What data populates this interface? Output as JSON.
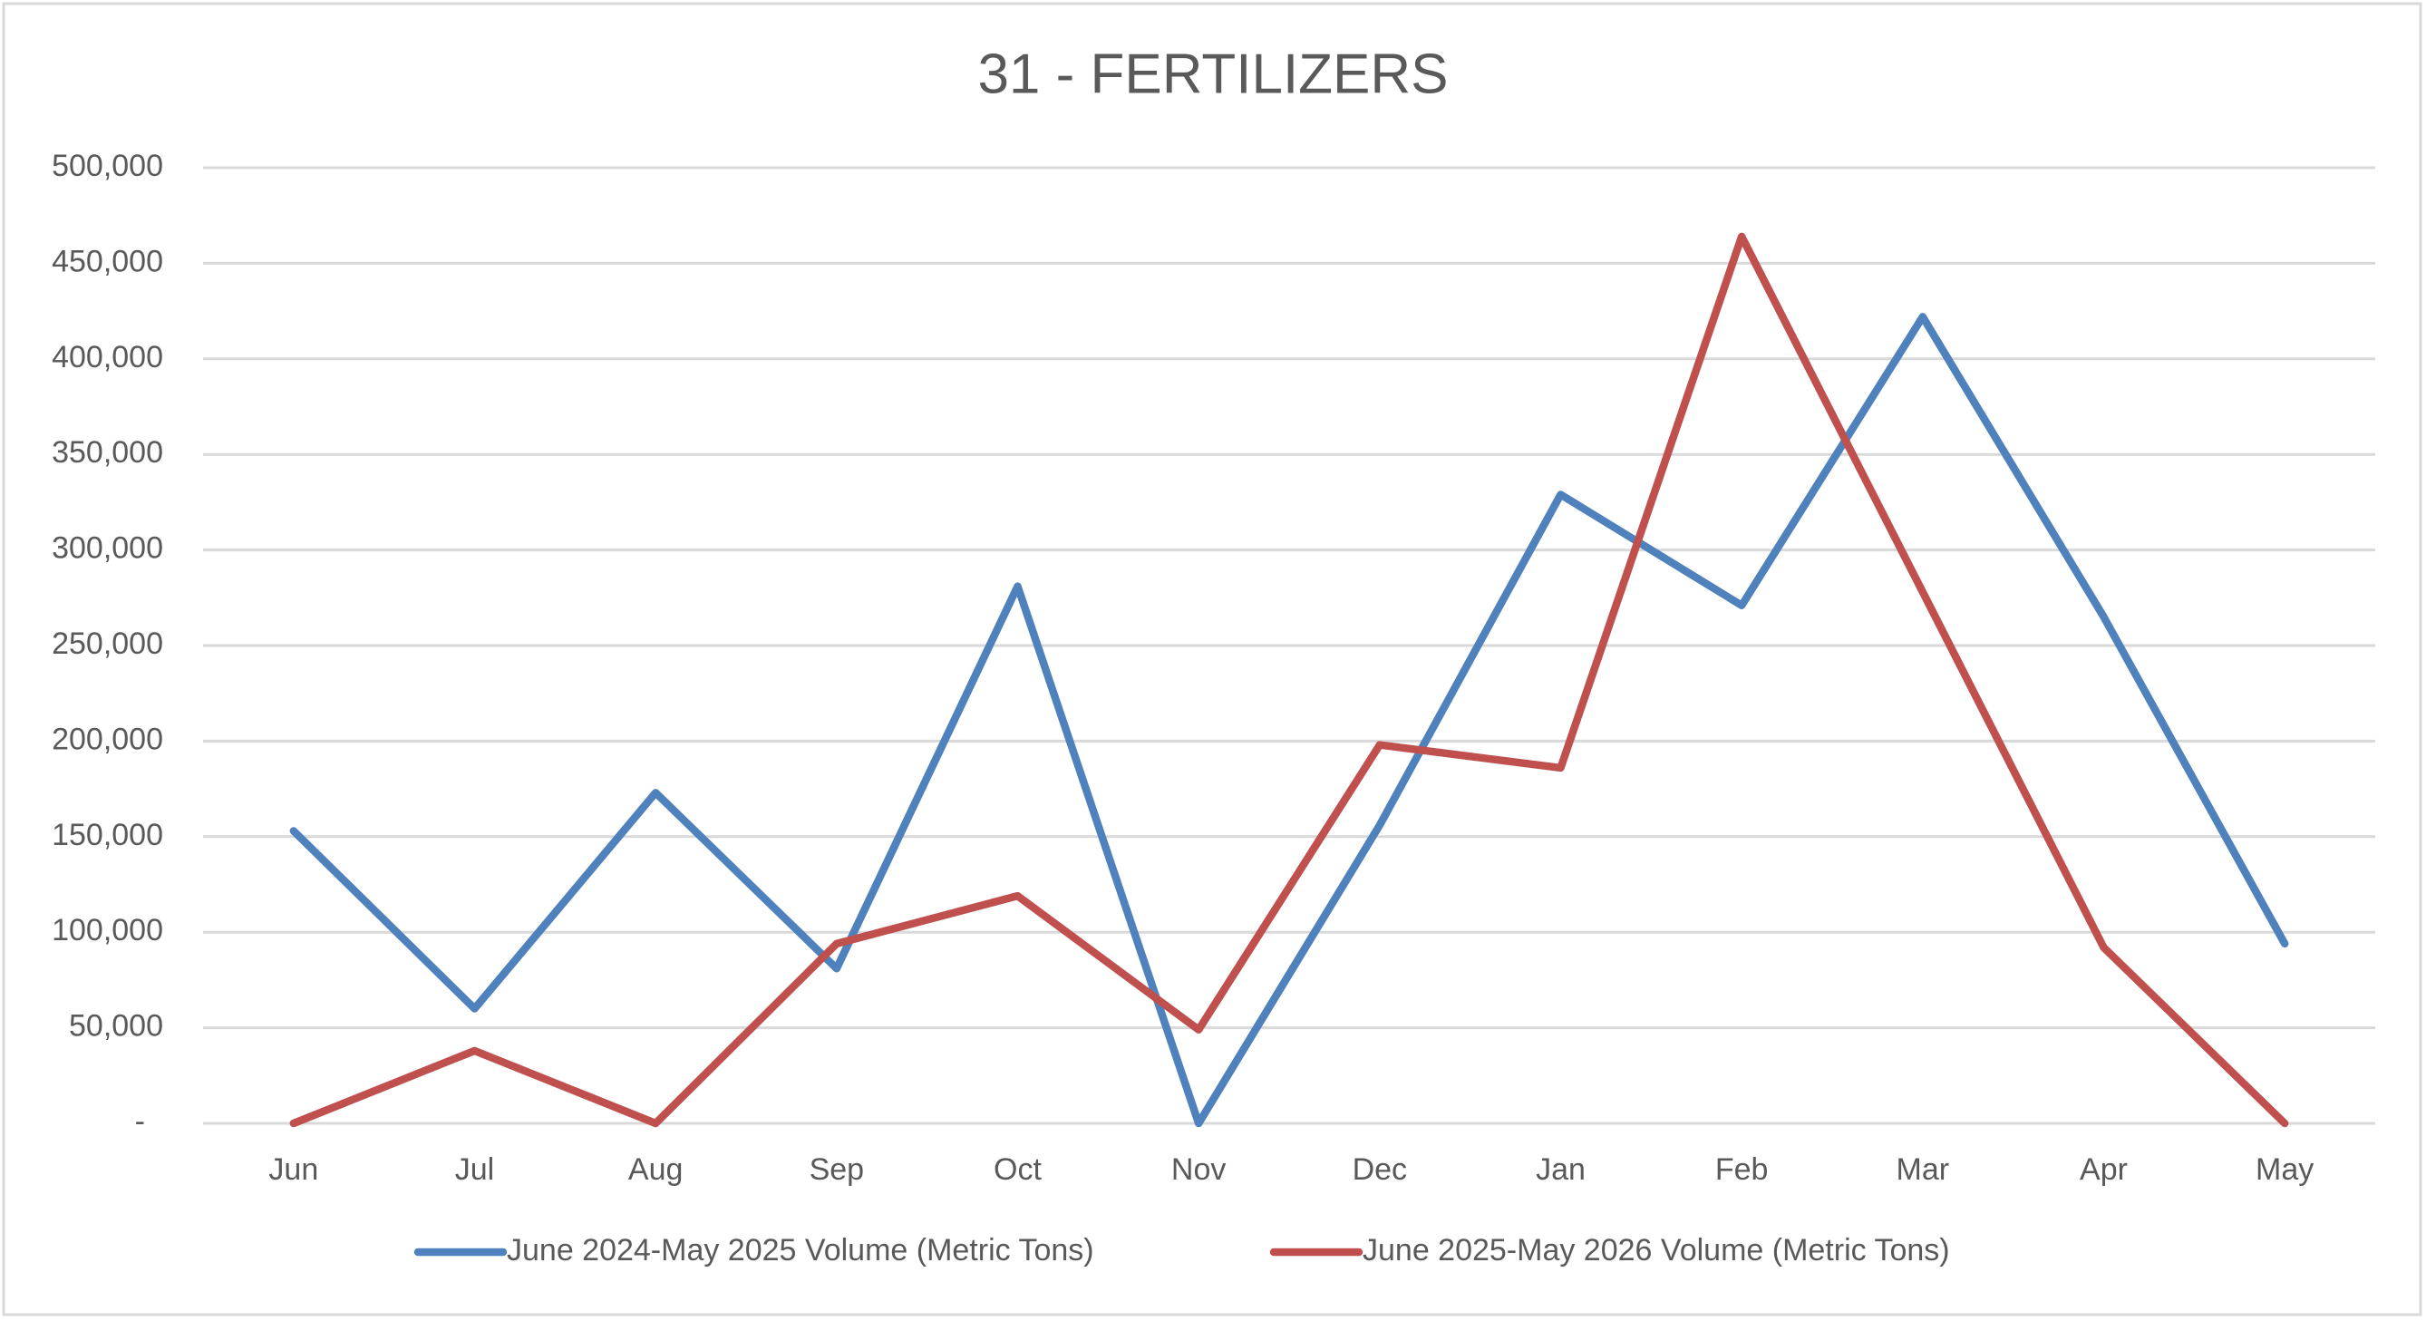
{
  "chart_data": {
    "type": "line",
    "title": "31 - FERTILIZERS",
    "categories": [
      "Jun",
      "Jul",
      "Aug",
      "Sep",
      "Oct",
      "Nov",
      "Dec",
      "Jan",
      "Feb",
      "Mar",
      "Apr",
      "May"
    ],
    "series": [
      {
        "name": "June 2024-May 2025 Volume (Metric Tons)",
        "color": "#4f81bd",
        "values": [
          153000,
          60000,
          173000,
          81000,
          281000,
          0,
          156000,
          329000,
          271000,
          422000,
          265000,
          94000
        ]
      },
      {
        "name": "June 2025-May 2026 Volume (Metric Tons)",
        "color": "#c0504d",
        "values": [
          0,
          38000,
          0,
          94000,
          119000,
          49000,
          198000,
          186000,
          464000,
          278000,
          92000,
          0
        ]
      }
    ],
    "ylim": [
      0,
      500000
    ],
    "yticks": [
      {
        "value": 0,
        "label": "-"
      },
      {
        "value": 50000,
        "label": "50,000"
      },
      {
        "value": 100000,
        "label": "100,000"
      },
      {
        "value": 150000,
        "label": "150,000"
      },
      {
        "value": 200000,
        "label": "200,000"
      },
      {
        "value": 250000,
        "label": "250,000"
      },
      {
        "value": 300000,
        "label": "300,000"
      },
      {
        "value": 350000,
        "label": "350,000"
      },
      {
        "value": 400000,
        "label": "400,000"
      },
      {
        "value": 450000,
        "label": "450,000"
      },
      {
        "value": 500000,
        "label": "500,000"
      }
    ],
    "grid": true,
    "legend": "bottom"
  }
}
